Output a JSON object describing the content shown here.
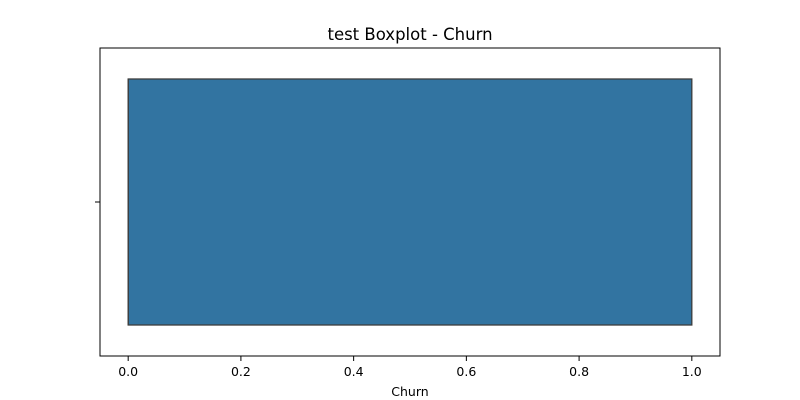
{
  "chart_data": {
    "type": "boxplot",
    "title": "test Boxplot - Churn",
    "xlabel": "Churn",
    "ylabel": "",
    "xlim": [
      -0.05,
      1.05
    ],
    "xticks": [
      0.0,
      0.2,
      0.4,
      0.6,
      0.8,
      1.0
    ],
    "xtick_labels": [
      "0.0",
      "0.2",
      "0.4",
      "0.6",
      "0.8",
      "1.0"
    ],
    "box": {
      "whisker_low": 0.0,
      "q1": 0.0,
      "median": 0.0,
      "q3": 1.0,
      "whisker_high": 1.0
    },
    "grid": false,
    "colors": {
      "box_fill": "#3274a1",
      "box_edge": "#3d3d3d",
      "axes": "#000000"
    }
  }
}
